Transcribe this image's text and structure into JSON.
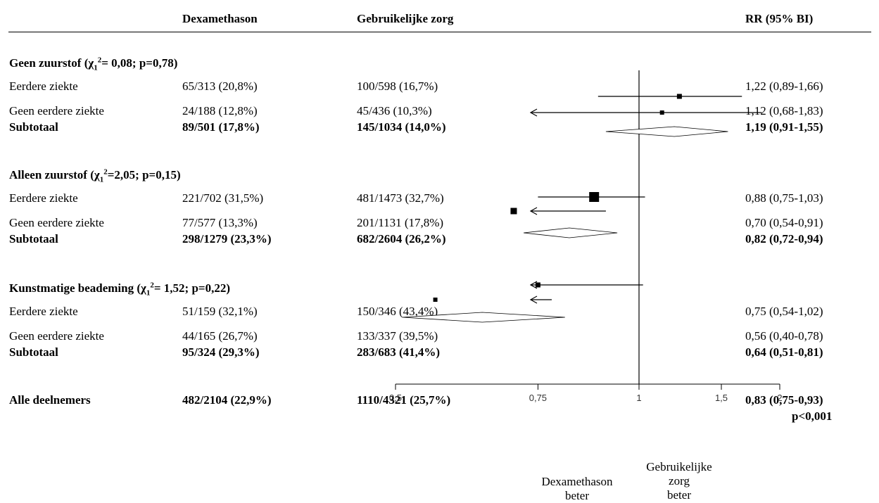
{
  "chart_data": {
    "type": "forest",
    "columns": {
      "dex": "Dexamethason",
      "care": "Gebruikelijke zorg",
      "rr": "RR (95% BI)"
    },
    "groups": [
      {
        "title_prefix": "Geen zuurstof (",
        "title_chi": "χ",
        "title_rest": "= 0,08; p=0,78)",
        "rows": [
          {
            "label": "Eerdere ziekte",
            "dex": "65/313 (20,8%)",
            "care": "100/598 (16,7%)",
            "rr_text": "1,22 (0,89-1,66)",
            "rr": 1.22,
            "lo": 0.89,
            "hi": 1.66
          },
          {
            "label": "Geen eerdere ziekte",
            "dex": "24/188 (12,8%)",
            "care": "45/436 (10,3%)",
            "rr_text": "1,12 (0,68-1,83)",
            "rr": 1.12,
            "lo": 0.68,
            "hi": 1.83
          }
        ],
        "subtotal": {
          "label": "Subtotaal",
          "dex": "89/501 (17,8%)",
          "care": "145/1034 (14,0%)",
          "rr_text": "1,19 (0,91-1,55)",
          "rr": 1.19,
          "lo": 0.91,
          "hi": 1.55
        }
      },
      {
        "title_prefix": "Alleen zuurstof (",
        "title_chi": "χ",
        "title_rest": "=2,05; p=0,15)",
        "rows": [
          {
            "label": "Eerdere ziekte",
            "dex": "221/702 (31,5%)",
            "care": "481/1473 (32,7%)",
            "rr_text": "0,88 (0,75-1,03)",
            "rr": 0.88,
            "lo": 0.75,
            "hi": 1.03
          },
          {
            "label": "Geen eerdere ziekte",
            "dex": "77/577 (13,3%)",
            "care": "201/1131 (17,8%)",
            "rr_text": "0,70 (0,54-0,91)",
            "rr": 0.7,
            "lo": 0.54,
            "hi": 0.91
          }
        ],
        "subtotal": {
          "label": "Subtotaal",
          "dex": "298/1279 (23,3%)",
          "care": "682/2604 (26,2%)",
          "rr_text": "0,82 (0,72-0,94)",
          "rr": 0.82,
          "lo": 0.72,
          "hi": 0.94
        }
      },
      {
        "title_prefix": "Kunstmatige beademing (",
        "title_chi": "χ",
        "title_rest": "= 1,52; p=0,22)",
        "rows": [
          {
            "label": "Eerdere ziekte",
            "dex": "51/159 (32,1%)",
            "care": "150/346 (43,4%)",
            "rr_text": "0,75 (0,54-1,02)",
            "rr": 0.75,
            "lo": 0.54,
            "hi": 1.02
          },
          {
            "label": "Geen eerdere ziekte",
            "dex": "44/165 (26,7%)",
            "care": "133/337 (39,5%)",
            "rr_text": "0,56 (0,40-0,78)",
            "rr": 0.56,
            "lo": 0.4,
            "hi": 0.78
          }
        ],
        "subtotal": {
          "label": "Subtotaal",
          "dex": "95/324 (29,3%)",
          "care": "283/683 (41,4%)",
          "rr_text": "0,64 (0,51-0,81)",
          "rr": 0.64,
          "lo": 0.51,
          "hi": 0.81
        }
      }
    ],
    "overall": {
      "label": "Alle deelnemers",
      "dex": "482/2104 (22,9%)",
      "care": "1110/4321 (25,7%)",
      "rr_text": "0,83 (0,75-0,93)",
      "p_text": "p<0,001",
      "rr": 0.83,
      "lo": 0.75,
      "hi": 0.93
    },
    "x_axis": {
      "ticks": [
        0.5,
        0.75,
        1,
        1.5,
        2
      ],
      "tick_labels": [
        "0,5",
        "0,75",
        "1",
        "1,5",
        "2"
      ],
      "reference": 1
    },
    "favours_left": [
      "Dexamethason",
      "beter"
    ],
    "favours_right": [
      "Gebruikelijke",
      "zorg",
      "beter"
    ]
  }
}
